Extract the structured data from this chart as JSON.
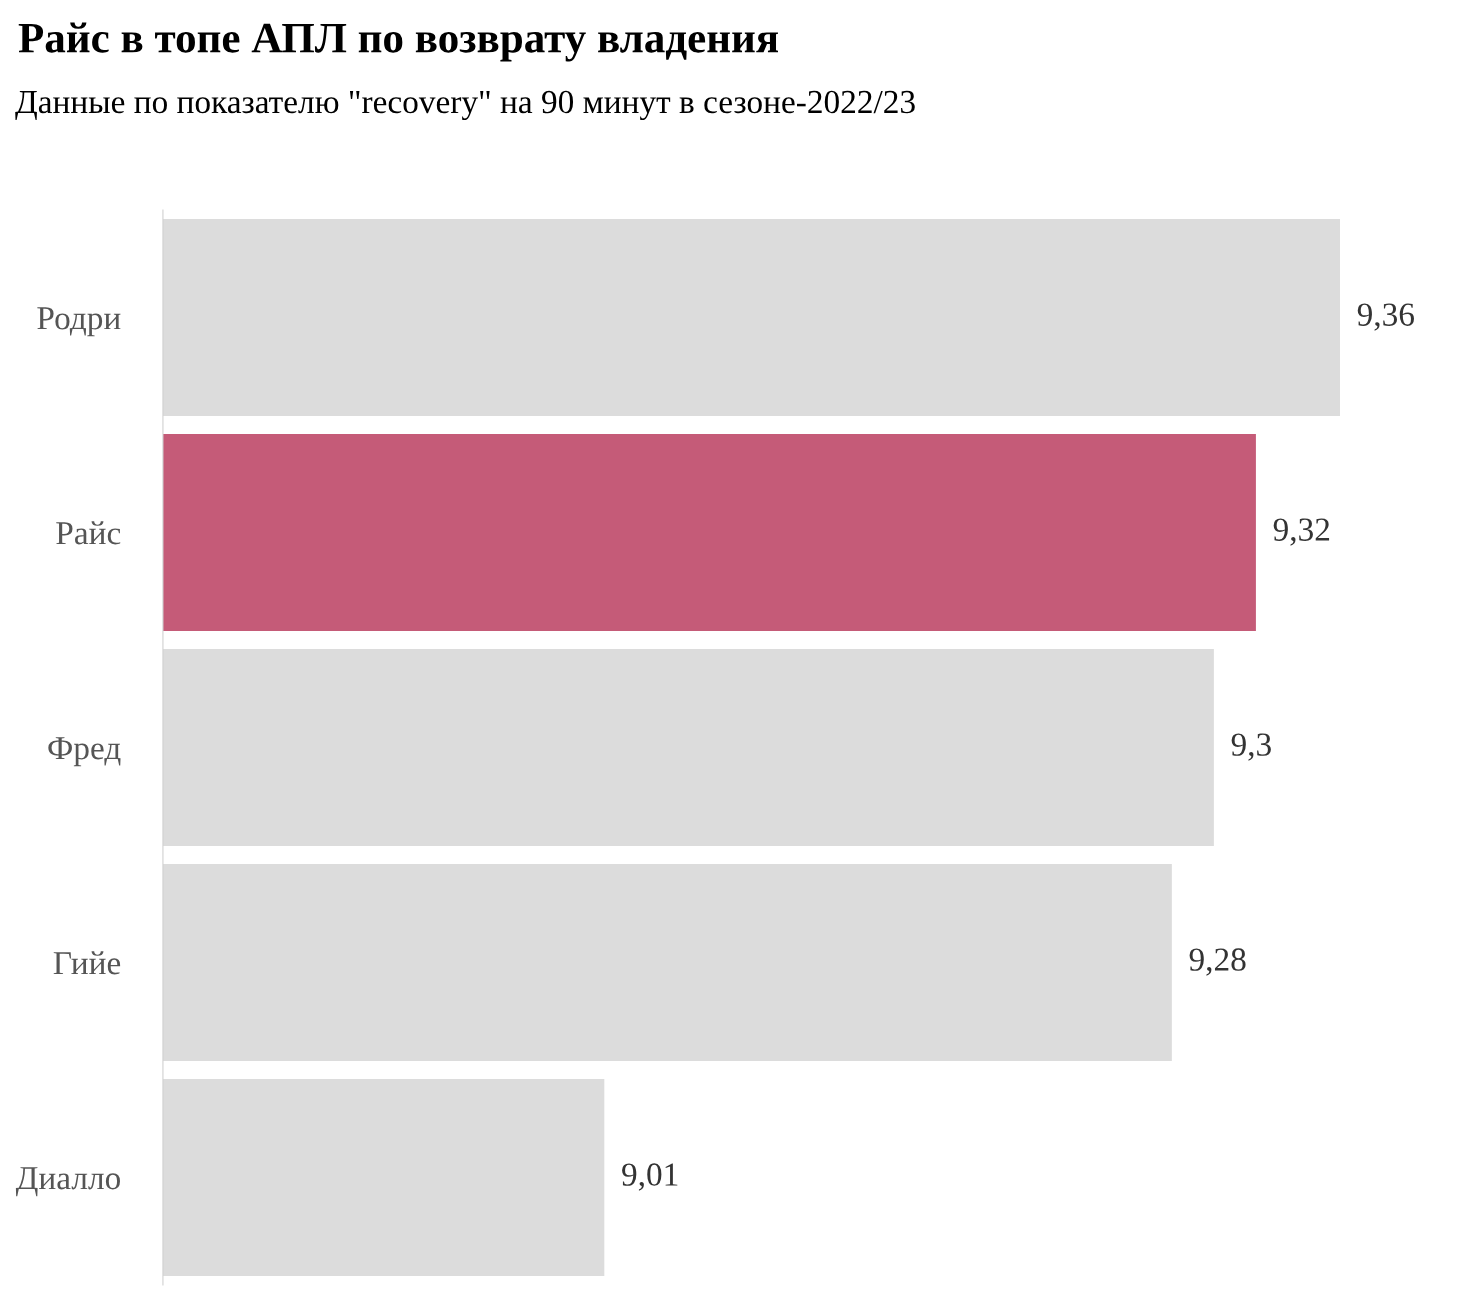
{
  "chart_data": {
    "type": "bar",
    "orientation": "horizontal",
    "title": "Райс в топе АПЛ по возврату владения",
    "subtitle": "Данные по показателю \"recovery\" на 90 минут в сезоне-2022/23",
    "categories": [
      "Родри",
      "Райс",
      "Фред",
      "Гийе",
      "Диалло"
    ],
    "values": [
      9.36,
      9.32,
      9.3,
      9.28,
      9.01
    ],
    "value_labels": [
      "9,36",
      "9,32",
      "9,3",
      "9,28",
      "9,01"
    ],
    "colors": [
      "#dcdcdc",
      "#c55b78",
      "#dcdcdc",
      "#dcdcdc",
      "#dcdcdc"
    ],
    "xlim": [
      8.8,
      9.36
    ],
    "tick_labels": "y",
    "grid": false,
    "legend": false
  }
}
